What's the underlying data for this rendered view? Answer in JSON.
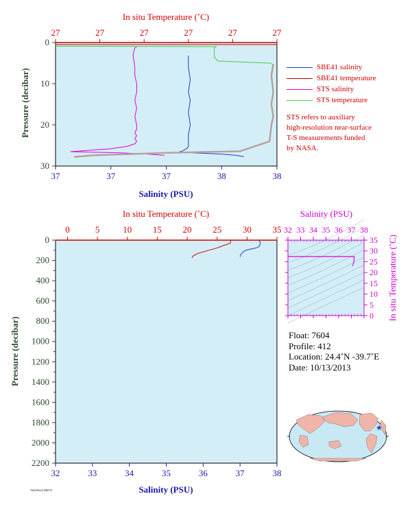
{
  "chart_data": [
    {
      "type": "line",
      "title": "",
      "xlabel": "Salinity (PSU)",
      "x2label": "In situ Temperature (˚C)",
      "ylabel": "Pressure (decibar)",
      "ylim": [
        30,
        0
      ],
      "xlim": [
        36.8,
        38
      ],
      "x_tick_labels": [
        "37",
        "37",
        "37",
        "38",
        "38"
      ],
      "x2_tick_labels": [
        "27",
        "27",
        "27",
        "27",
        "27",
        "27"
      ],
      "y_ticks": [
        0,
        10,
        20,
        30
      ],
      "series": [
        {
          "name": "SBE41 salinity",
          "color": "#1a3ccc",
          "x": [
            37.52,
            37.52,
            37.53,
            37.52,
            37.53,
            37.52,
            37.53,
            37.52,
            37.52,
            37.52,
            37.51,
            37.49,
            37.47,
            37.55,
            37.7,
            37.78,
            37.82
          ],
          "y": [
            3.2,
            6,
            9,
            12,
            14,
            17,
            20,
            22.5,
            24.5,
            25.3,
            25.8,
            26.3,
            26.6,
            26.8,
            27.1,
            27.4,
            27.7
          ]
        },
        {
          "name": "SBE41 temperature",
          "color": "#cc0000",
          "x": [
            36.8,
            38
          ],
          "y": [
            0.5,
            0.5
          ]
        },
        {
          "name": "STS salinity",
          "color": "#e000e0",
          "x": [
            37.24,
            37.23,
            37.22,
            37.23,
            37.23,
            37.24,
            37.24,
            37.23,
            37.24,
            37.23,
            37.24,
            37.24,
            37.23,
            37.24,
            37.23,
            37.24,
            37.23,
            37.19,
            37.1,
            36.88,
            37.15,
            37.3,
            37.39
          ],
          "y": [
            1.1,
            1.3,
            3,
            6,
            8,
            10,
            12,
            14,
            16,
            18,
            20,
            21,
            22,
            22.6,
            23.3,
            24,
            24.6,
            25.2,
            25.8,
            26.5,
            26.8,
            27.1,
            27.4
          ]
        },
        {
          "name": "STS temperature",
          "color": "#44cc44",
          "x": [
            36.8,
            37.45,
            37.67,
            37.66,
            37.66,
            37.66,
            37.68,
            37.96,
            37.98
          ],
          "y": [
            0.9,
            0.95,
            1.0,
            1.3,
            2.0,
            3.5,
            4.5,
            5.0,
            5.3
          ]
        },
        {
          "name": "",
          "color": "#b4a09a",
          "x": [
            37.98,
            37.97,
            37.98,
            37.97,
            37.98,
            37.97,
            37.96,
            37.8,
            37.6,
            37.4,
            37.2,
            37.0,
            36.9
          ],
          "y": [
            5.3,
            8,
            12,
            15,
            18,
            20,
            24,
            26.4,
            26.6,
            26.8,
            27.1,
            27.4,
            27.8
          ]
        }
      ],
      "legend": "right",
      "annotation": "STS refers to auxiliary\nhigh-resolution near-surface\nT-S measurements funded\nby NASA.",
      "grid": false
    },
    {
      "type": "line",
      "title": "",
      "xlabel": "Salinity (PSU)",
      "x2label": "In situ Temperature (˚C)",
      "ylabel": "Pressure (decibar)",
      "xlim": [
        32,
        38
      ],
      "x2lim": [
        -2,
        35
      ],
      "ylim": [
        2200,
        0
      ],
      "x_ticks": [
        32,
        33,
        34,
        35,
        36,
        37,
        38
      ],
      "x2_ticks": [
        0,
        5,
        10,
        15,
        20,
        25,
        30,
        35
      ],
      "y_ticks": [
        0,
        200,
        400,
        600,
        800,
        1000,
        1200,
        1400,
        1600,
        1800,
        2000,
        2200
      ],
      "series": [
        {
          "name": "",
          "color": "#cc0000",
          "x": [
            27.3,
            27.2,
            26.7,
            26.6,
            26.1,
            25.8,
            24.8,
            23.0,
            21.8,
            21.0,
            20.8
          ],
          "y": [
            0,
            30,
            40,
            45,
            50,
            60,
            80,
            110,
            130,
            155,
            175
          ]
        },
        {
          "name": "",
          "color": "#1a3ccc",
          "x": [
            37.52,
            37.55,
            37.52,
            37.49,
            37.4,
            37.2,
            37.1,
            37.02,
            37.0
          ],
          "y": [
            0,
            30,
            60,
            70,
            80,
            95,
            110,
            140,
            165
          ]
        }
      ],
      "grid": false
    },
    {
      "type": "line",
      "title": "",
      "xlabel": "Salinity (PSU)",
      "ylabel": "In situ Temperature (˚C)",
      "xlim": [
        32,
        38
      ],
      "ylim": [
        0,
        35
      ],
      "x_ticks": [
        32,
        33,
        34,
        35,
        36,
        37,
        38
      ],
      "y_ticks": [
        0,
        5,
        10,
        15,
        20,
        25,
        30,
        35
      ],
      "series": [
        {
          "name": "",
          "color": "#e000e0",
          "x": [
            32,
            37.23,
            37.2,
            37.1
          ],
          "y": [
            27.4,
            27.4,
            25,
            23
          ]
        }
      ]
    }
  ],
  "info": {
    "float": "Float:  7604",
    "profile": "Profile:  412",
    "location": "Location:  24.4˚N  -39.7˚E",
    "date": "Date:  10/13/2013"
  },
  "footer": "7604 P0412 080574",
  "colors": {
    "plot_bg": "#d4eef7",
    "temp_axis": "#cc0000",
    "sal_axis": "#1a1aaa",
    "ts_axis": "#cc00cc",
    "pressure_axis": "#2e4a2e",
    "map_land": "#f0b4a8",
    "map_ocean": "#c8e8f4"
  }
}
